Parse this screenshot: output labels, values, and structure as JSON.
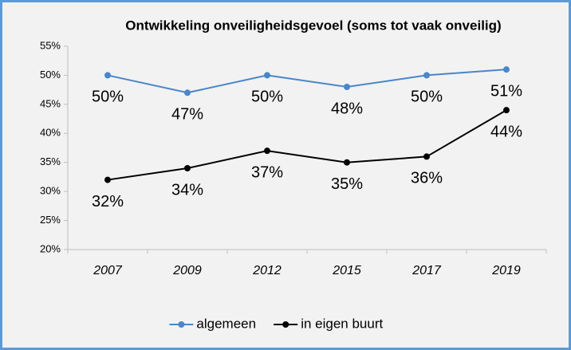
{
  "chart_data": {
    "type": "line",
    "title": "Ontwikkeling onveiligheidsgevoel (soms tot vaak onveilig)",
    "categories": [
      "2007",
      "2009",
      "2012",
      "2015",
      "2017",
      "2019"
    ],
    "series": [
      {
        "name": "algemeen",
        "color": "#4a86c8",
        "values": [
          50,
          47,
          50,
          48,
          50,
          51
        ],
        "value_labels": [
          "50%",
          "47%",
          "50%",
          "48%",
          "50%",
          "51%"
        ],
        "value_label_colors": [
          "#000000",
          "#000000",
          "#000000",
          "#000000",
          "#000000",
          "#e6195f"
        ]
      },
      {
        "name": "in eigen buurt",
        "color": "#000000",
        "values": [
          32,
          34,
          37,
          35,
          36,
          44
        ],
        "value_labels": [
          "32%",
          "34%",
          "37%",
          "35%",
          "36%",
          "44%"
        ],
        "value_label_colors": [
          "#000000",
          "#000000",
          "#000000",
          "#000000",
          "#000000",
          "#e6195f"
        ]
      }
    ],
    "ylim": [
      20,
      55
    ],
    "yticks": [
      {
        "value": 20,
        "label": "20%"
      },
      {
        "value": 25,
        "label": "25%"
      },
      {
        "value": 30,
        "label": "30%"
      },
      {
        "value": 35,
        "label": "35%"
      },
      {
        "value": 40,
        "label": "40%"
      },
      {
        "value": 45,
        "label": "45%"
      },
      {
        "value": 50,
        "label": "50%"
      },
      {
        "value": 55,
        "label": "55%"
      }
    ],
    "grid": false,
    "legend": "bottom"
  }
}
